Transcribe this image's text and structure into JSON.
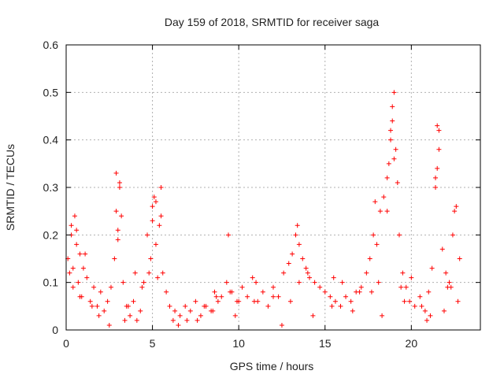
{
  "chart_data": {
    "type": "scatter",
    "title": "Day 159 of 2018, SRMTID for receiver saga",
    "xlabel": "GPS time / hours",
    "ylabel": "SRMTID / TECUs",
    "xlim": [
      0,
      24
    ],
    "ylim": [
      0,
      0.6
    ],
    "xticks": [
      0,
      5,
      10,
      15,
      20
    ],
    "xtick_labels": [
      "0",
      "5",
      "10",
      "15",
      "20"
    ],
    "yticks": [
      0,
      0.1,
      0.2,
      0.3,
      0.4,
      0.5,
      0.6
    ],
    "ytick_labels": [
      "0",
      "0.1",
      "0.2",
      "0.3",
      "0.4",
      "0.5",
      "0.6"
    ],
    "grid": true,
    "marker": "+",
    "colors": {
      "series": "#ff0000",
      "grid": "#b0b0b0",
      "axis": "#000000"
    },
    "series": [
      {
        "name": "SRMTID",
        "x": [
          0.1,
          0.2,
          0.3,
          0.4,
          0.5,
          0.6,
          0.7,
          0.8,
          0.9,
          1.0,
          1.2,
          1.4,
          1.6,
          1.8,
          2.0,
          2.2,
          2.4,
          2.6,
          2.8,
          2.9,
          3.0,
          3.1,
          3.2,
          3.3,
          3.5,
          3.7,
          3.9,
          4.1,
          4.3,
          4.5,
          4.7,
          4.9,
          5.0,
          5.1,
          5.2,
          5.3,
          5.4,
          5.5,
          5.6,
          5.8,
          6.0,
          6.3,
          6.6,
          6.9,
          7.2,
          7.5,
          7.8,
          8.1,
          8.4,
          8.6,
          8.8,
          9.0,
          9.3,
          9.6,
          9.9,
          10.2,
          10.5,
          10.8,
          11.1,
          11.4,
          11.7,
          12.0,
          12.3,
          12.6,
          12.9,
          13.1,
          13.3,
          13.5,
          13.7,
          13.9,
          14.1,
          14.4,
          14.7,
          15.0,
          15.3,
          15.6,
          15.9,
          16.2,
          16.5,
          16.8,
          17.1,
          17.4,
          17.6,
          17.8,
          18.0,
          18.2,
          18.4,
          18.6,
          18.8,
          18.9,
          19.0,
          19.1,
          19.3,
          19.5,
          19.7,
          19.9,
          20.2,
          20.5,
          20.8,
          21.0,
          21.2,
          21.4,
          21.5,
          21.6,
          21.8,
          22.0,
          22.2,
          22.4,
          22.6,
          22.8,
          0.3,
          0.6,
          1.1,
          2.9,
          3.1,
          4.8,
          5.2,
          5.5,
          9.4,
          13.4,
          18.7,
          18.8,
          18.9,
          19.0,
          21.5,
          21.6,
          21.4,
          22.5,
          19.2,
          17.9,
          3.0,
          5.0,
          18.6,
          0.4,
          1.5,
          2.5,
          3.6,
          4.0,
          6.2,
          7.0,
          8.0,
          8.5,
          9.5,
          10.0,
          11.0,
          12.0,
          13.0,
          13.5,
          14.0,
          15.5,
          16.0,
          17.0,
          18.1,
          19.4,
          20.0,
          20.6,
          21.1,
          22.1,
          22.7,
          0.8,
          1.9,
          3.4,
          4.4,
          6.5,
          7.6,
          8.7,
          9.8,
          10.9,
          12.5,
          14.3,
          15.4,
          16.6,
          17.7,
          18.3,
          19.6,
          20.9,
          21.9,
          22.3
        ],
        "y": [
          0.15,
          0.12,
          0.22,
          0.09,
          0.24,
          0.18,
          0.1,
          0.16,
          0.07,
          0.13,
          0.11,
          0.06,
          0.09,
          0.05,
          0.08,
          0.04,
          0.06,
          0.09,
          0.15,
          0.25,
          0.21,
          0.3,
          0.24,
          0.1,
          0.05,
          0.03,
          0.06,
          0.02,
          0.04,
          0.1,
          0.2,
          0.15,
          0.23,
          0.28,
          0.18,
          0.11,
          0.22,
          0.24,
          0.12,
          0.08,
          0.05,
          0.04,
          0.03,
          0.05,
          0.04,
          0.06,
          0.03,
          0.05,
          0.04,
          0.08,
          0.06,
          0.07,
          0.1,
          0.08,
          0.06,
          0.09,
          0.07,
          0.11,
          0.06,
          0.08,
          0.05,
          0.09,
          0.07,
          0.12,
          0.14,
          0.16,
          0.2,
          0.18,
          0.15,
          0.13,
          0.11,
          0.1,
          0.09,
          0.08,
          0.07,
          0.06,
          0.05,
          0.07,
          0.06,
          0.08,
          0.09,
          0.12,
          0.15,
          0.2,
          0.18,
          0.25,
          0.28,
          0.32,
          0.4,
          0.44,
          0.5,
          0.38,
          0.2,
          0.12,
          0.09,
          0.06,
          0.05,
          0.07,
          0.04,
          0.08,
          0.13,
          0.3,
          0.43,
          0.38,
          0.17,
          0.12,
          0.1,
          0.2,
          0.26,
          0.15,
          0.2,
          0.21,
          0.16,
          0.33,
          0.31,
          0.12,
          0.27,
          0.3,
          0.2,
          0.22,
          0.35,
          0.42,
          0.47,
          0.36,
          0.34,
          0.42,
          0.32,
          0.25,
          0.31,
          0.27,
          0.19,
          0.26,
          0.25,
          0.13,
          0.05,
          0.01,
          0.05,
          0.12,
          0.02,
          0.02,
          0.05,
          0.04,
          0.08,
          0.06,
          0.1,
          0.07,
          0.06,
          0.1,
          0.12,
          0.11,
          0.1,
          0.08,
          0.1,
          0.09,
          0.11,
          0.05,
          0.03,
          0.09,
          0.06,
          0.07,
          0.03,
          0.02,
          0.09,
          0.01,
          0.02,
          0.07,
          0.03,
          0.06,
          0.01,
          0.03,
          0.05,
          0.04,
          0.08,
          0.03,
          0.06,
          0.02,
          0.04,
          0.09
        ]
      }
    ]
  }
}
